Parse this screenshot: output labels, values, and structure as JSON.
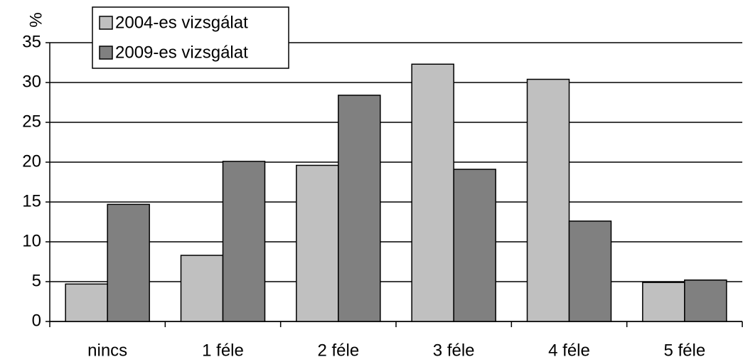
{
  "chart_data": {
    "type": "bar",
    "y_label": "%",
    "categories": [
      "nincs",
      "1 féle",
      "2 féle",
      "3 féle",
      "4 féle",
      "5 féle"
    ],
    "series": [
      {
        "name": "2004-es vizsgálat",
        "color": "#c0c0c0",
        "values": [
          4.7,
          8.3,
          19.6,
          32.3,
          30.4,
          4.9
        ]
      },
      {
        "name": "2009-es vizsgálat",
        "color": "#808080",
        "values": [
          14.7,
          20.1,
          28.4,
          19.1,
          12.6,
          5.2
        ]
      }
    ],
    "ylim": [
      0,
      35
    ],
    "yticks": [
      0,
      5,
      10,
      15,
      20,
      25,
      30,
      35
    ],
    "grid": true,
    "legend": "top-left"
  }
}
